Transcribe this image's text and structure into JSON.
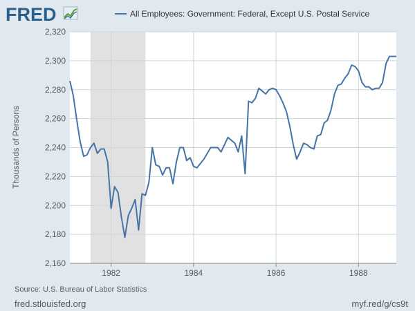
{
  "header": {
    "logo_text": "FRED",
    "legend_label": "All Employees: Government: Federal, Except U.S. Postal Service"
  },
  "footer": {
    "source": "Source: U.S. Bureau of Labor Statistics",
    "site": "fred.stlouisfed.org",
    "shortlink": "myf.red/g/cs9t"
  },
  "colors": {
    "background": "#e1e9f0",
    "plot_background": "#ffffff",
    "line": "#4572a7",
    "recession": "#e1e1e1",
    "grid": "#ccd6dd",
    "text": "#595959"
  },
  "icons": {
    "logo_graph": "line-graph-icon"
  },
  "chart_data": {
    "type": "line",
    "title": "",
    "xlabel": "",
    "ylabel": "Thousands of Persons",
    "xlim": [
      1981.0,
      1988.917
    ],
    "ylim": [
      2160,
      2320
    ],
    "yticks": [
      2160,
      2180,
      2200,
      2220,
      2240,
      2260,
      2280,
      2300,
      2320
    ],
    "ytick_labels": [
      "2,160",
      "2,180",
      "2,200",
      "2,220",
      "2,240",
      "2,260",
      "2,280",
      "2,300",
      "2,320"
    ],
    "xticks": [
      1982,
      1984,
      1986,
      1988
    ],
    "xtick_labels": [
      "1982",
      "1984",
      "1986",
      "1988"
    ],
    "grid": true,
    "legend": "top",
    "recessions": [
      [
        1981.5,
        1982.833
      ]
    ],
    "series": [
      {
        "name": "All Employees: Government: Federal, Except U.S. Postal Service",
        "x": [
          1981.0,
          1981.083,
          1981.167,
          1981.25,
          1981.333,
          1981.417,
          1981.5,
          1981.583,
          1981.667,
          1981.75,
          1981.833,
          1981.917,
          1982.0,
          1982.083,
          1982.167,
          1982.25,
          1982.333,
          1982.417,
          1982.5,
          1982.583,
          1982.667,
          1982.75,
          1982.833,
          1982.917,
          1983.0,
          1983.083,
          1983.167,
          1983.25,
          1983.333,
          1983.417,
          1983.5,
          1983.583,
          1983.667,
          1983.75,
          1983.833,
          1983.917,
          1984.0,
          1984.083,
          1984.167,
          1984.25,
          1984.333,
          1984.417,
          1984.5,
          1984.583,
          1984.667,
          1984.75,
          1984.833,
          1984.917,
          1985.0,
          1985.083,
          1985.167,
          1985.25,
          1985.333,
          1985.417,
          1985.5,
          1985.583,
          1985.667,
          1985.75,
          1985.833,
          1985.917,
          1986.0,
          1986.083,
          1986.167,
          1986.25,
          1986.333,
          1986.417,
          1986.5,
          1986.583,
          1986.667,
          1986.75,
          1986.833,
          1986.917,
          1987.0,
          1987.083,
          1987.167,
          1987.25,
          1987.333,
          1987.417,
          1987.5,
          1987.583,
          1987.667,
          1987.75,
          1987.833,
          1987.917,
          1988.0,
          1988.083,
          1988.167,
          1988.25,
          1988.333,
          1988.417,
          1988.5,
          1988.583,
          1988.667,
          1988.75,
          1988.833,
          1988.917
        ],
        "y": [
          2286,
          2276,
          2259,
          2244,
          2234,
          2235,
          2240,
          2243,
          2236,
          2239,
          2239,
          2230,
          2198,
          2213,
          2209,
          2192,
          2178,
          2193,
          2198,
          2204,
          2183,
          2208,
          2207,
          2216,
          2240,
          2228,
          2227,
          2221,
          2226,
          2226,
          2215,
          2230,
          2240,
          2240,
          2231,
          2233,
          2227,
          2226,
          2229,
          2232,
          2236,
          2240,
          2240,
          2240,
          2237,
          2242,
          2247,
          2245,
          2243,
          2237,
          2248,
          2222,
          2272,
          2271,
          2274,
          2281,
          2279,
          2277,
          2280,
          2281,
          2280,
          2276,
          2271,
          2265,
          2255,
          2242,
          2232,
          2237,
          2243,
          2242,
          2240,
          2239,
          2248,
          2249,
          2257,
          2259,
          2266,
          2277,
          2283,
          2284,
          2288,
          2291,
          2297,
          2296,
          2293,
          2285,
          2282,
          2282,
          2280,
          2281,
          2281,
          2285,
          2298,
          2303,
          2303,
          2303
        ]
      }
    ]
  }
}
